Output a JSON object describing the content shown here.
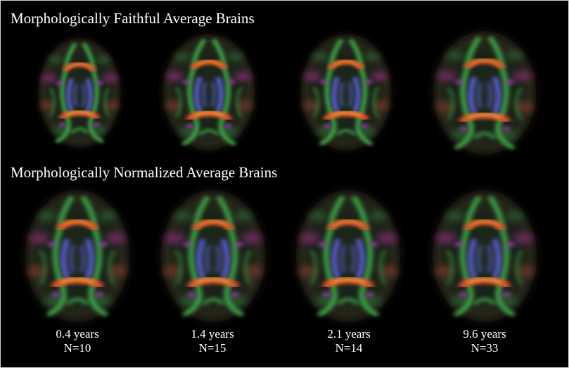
{
  "rows": [
    {
      "title": "Morphologically Faithful Average Brains"
    },
    {
      "title": "Morphologically Normalized Average Brains"
    }
  ],
  "columns": [
    {
      "age": "0.4 years",
      "n": "N=10"
    },
    {
      "age": "1.4 years",
      "n": "N=15"
    },
    {
      "age": "2.1 years",
      "n": "N=14"
    },
    {
      "age": "9.6 years",
      "n": "N=33"
    }
  ],
  "colors": {
    "background": "#000000",
    "text": "#ffffff",
    "tract_green": "#3fa34a",
    "tract_blue": "#5a5fd0",
    "tract_red": "#e0502a",
    "tract_orange": "#f08a2a",
    "tract_purple": "#9a3fb0"
  }
}
